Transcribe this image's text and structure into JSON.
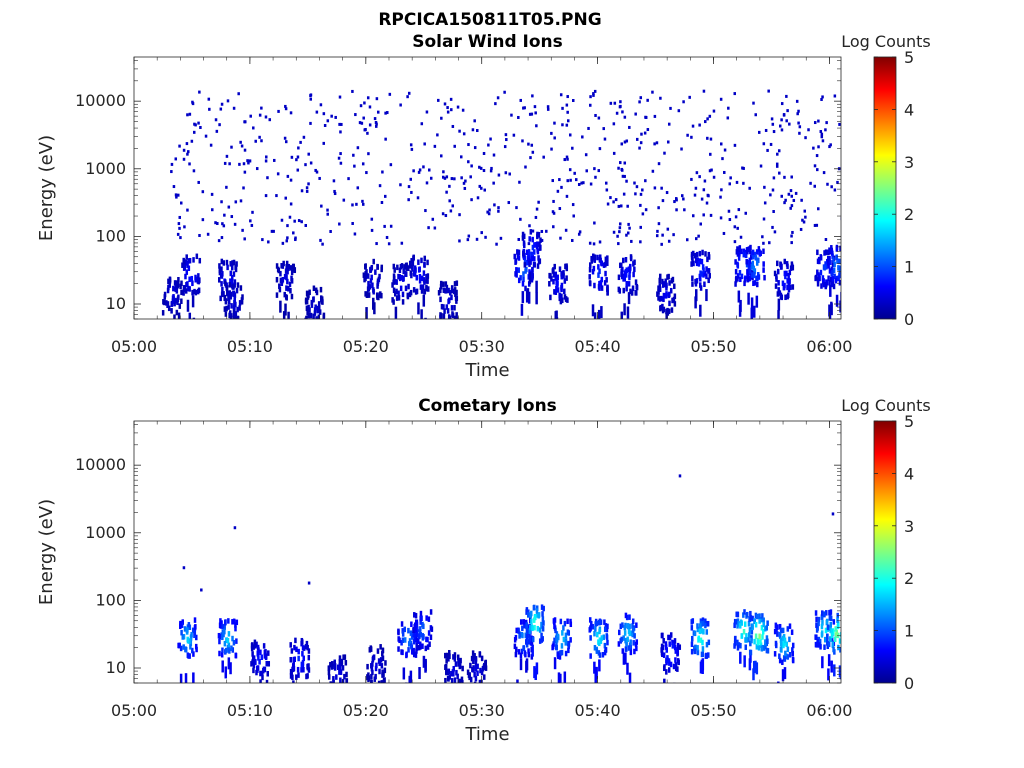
{
  "figure": {
    "title": "RPCICA150811T05.PNG"
  },
  "colormap": {
    "name": "jet",
    "stops": [
      "#00008f",
      "#0000ff",
      "#0080ff",
      "#00ffff",
      "#80ff80",
      "#ffff00",
      "#ff8000",
      "#ff0000",
      "#800000"
    ]
  },
  "chart_data": [
    {
      "type": "heatmap",
      "title": "Solar Wind Ions",
      "xlabel": "Time",
      "ylabel": "Energy (eV)",
      "x_ticks": [
        "05:00",
        "05:10",
        "05:20",
        "05:30",
        "05:40",
        "05:50",
        "06:00"
      ],
      "x_range_minutes": [
        0,
        61
      ],
      "y_scale": "log",
      "y_ticks": [
        "10",
        "100",
        "1000",
        "10000"
      ],
      "y_range": [
        6,
        45000
      ],
      "colorbar": {
        "label": "Log Counts",
        "ticks": [
          "0",
          "1",
          "2",
          "3",
          "4",
          "5"
        ],
        "range": [
          0,
          5
        ]
      },
      "clusters": [
        {
          "t": 3.2,
          "e": 15,
          "value": 0.5
        },
        {
          "t": 4.8,
          "e": 30,
          "value": 0.8
        },
        {
          "t": 8.0,
          "e": 25,
          "value": 0.7
        },
        {
          "t": 8.5,
          "e": 12,
          "value": 0.5
        },
        {
          "t": 13.0,
          "e": 25,
          "value": 0.5
        },
        {
          "t": 15.5,
          "e": 10,
          "value": 0.4
        },
        {
          "t": 20.5,
          "e": 25,
          "value": 0.5
        },
        {
          "t": 23.0,
          "e": 22,
          "value": 0.6
        },
        {
          "t": 24.5,
          "e": 30,
          "value": 0.7
        },
        {
          "t": 27.0,
          "e": 12,
          "value": 0.5
        },
        {
          "t": 33.5,
          "e": 35,
          "value": 1.2
        },
        {
          "t": 34.2,
          "e": 70,
          "value": 0.9
        },
        {
          "t": 36.5,
          "e": 22,
          "value": 0.7
        },
        {
          "t": 40.0,
          "e": 30,
          "value": 0.9
        },
        {
          "t": 42.5,
          "e": 30,
          "value": 0.8
        },
        {
          "t": 45.8,
          "e": 15,
          "value": 0.6
        },
        {
          "t": 48.8,
          "e": 35,
          "value": 0.9
        },
        {
          "t": 52.5,
          "e": 40,
          "value": 1.2
        },
        {
          "t": 53.5,
          "e": 40,
          "value": 1.4
        },
        {
          "t": 56.0,
          "e": 25,
          "value": 0.8
        },
        {
          "t": 59.5,
          "e": 35,
          "value": 1.0
        },
        {
          "t": 60.5,
          "e": 40,
          "value": 1.3
        }
      ],
      "scatter_density": {
        "t_range": [
          3,
          61
        ],
        "e_range": [
          80,
          15000
        ],
        "count": 700,
        "value": 0.3
      }
    },
    {
      "type": "heatmap",
      "title": "Cometary Ions",
      "xlabel": "Time",
      "ylabel": "Energy (eV)",
      "x_ticks": [
        "05:00",
        "05:10",
        "05:20",
        "05:30",
        "05:40",
        "05:50",
        "06:00"
      ],
      "x_range_minutes": [
        0,
        61
      ],
      "y_scale": "log",
      "y_ticks": [
        "10",
        "100",
        "1000",
        "10000"
      ],
      "y_range": [
        6,
        45000
      ],
      "colorbar": {
        "label": "Log Counts",
        "ticks": [
          "0",
          "1",
          "2",
          "3",
          "4",
          "5"
        ],
        "range": [
          0,
          5
        ]
      },
      "clusters": [
        {
          "t": 4.5,
          "e": 30,
          "value": 1.8
        },
        {
          "t": 8.0,
          "e": 30,
          "value": 1.8
        },
        {
          "t": 10.8,
          "e": 15,
          "value": 0.8
        },
        {
          "t": 14.2,
          "e": 15,
          "value": 0.9
        },
        {
          "t": 17.5,
          "e": 9,
          "value": 0.5
        },
        {
          "t": 20.8,
          "e": 12,
          "value": 0.5
        },
        {
          "t": 23.5,
          "e": 30,
          "value": 1.4
        },
        {
          "t": 24.8,
          "e": 40,
          "value": 1.2
        },
        {
          "t": 27.5,
          "e": 10,
          "value": 0.5
        },
        {
          "t": 29.5,
          "e": 10,
          "value": 0.5
        },
        {
          "t": 33.5,
          "e": 30,
          "value": 1.4
        },
        {
          "t": 34.5,
          "e": 50,
          "value": 2.3
        },
        {
          "t": 36.8,
          "e": 30,
          "value": 1.8
        },
        {
          "t": 40.0,
          "e": 30,
          "value": 2.0
        },
        {
          "t": 42.5,
          "e": 35,
          "value": 1.8
        },
        {
          "t": 46.2,
          "e": 18,
          "value": 1.0
        },
        {
          "t": 48.8,
          "e": 30,
          "value": 2.2
        },
        {
          "t": 52.5,
          "e": 40,
          "value": 2.3
        },
        {
          "t": 53.8,
          "e": 35,
          "value": 2.8
        },
        {
          "t": 56.0,
          "e": 25,
          "value": 1.9
        },
        {
          "t": 59.5,
          "e": 40,
          "value": 2.0
        },
        {
          "t": 60.5,
          "e": 35,
          "value": 2.6
        }
      ],
      "points": [
        {
          "t": 4.2,
          "e": 320,
          "value": 0.3
        },
        {
          "t": 5.7,
          "e": 150,
          "value": 0.3
        },
        {
          "t": 8.6,
          "e": 1250,
          "value": 0.3
        },
        {
          "t": 15.0,
          "e": 190,
          "value": 0.3
        },
        {
          "t": 47.0,
          "e": 7300,
          "value": 0.3
        },
        {
          "t": 60.2,
          "e": 2000,
          "value": 0.3
        }
      ]
    }
  ]
}
